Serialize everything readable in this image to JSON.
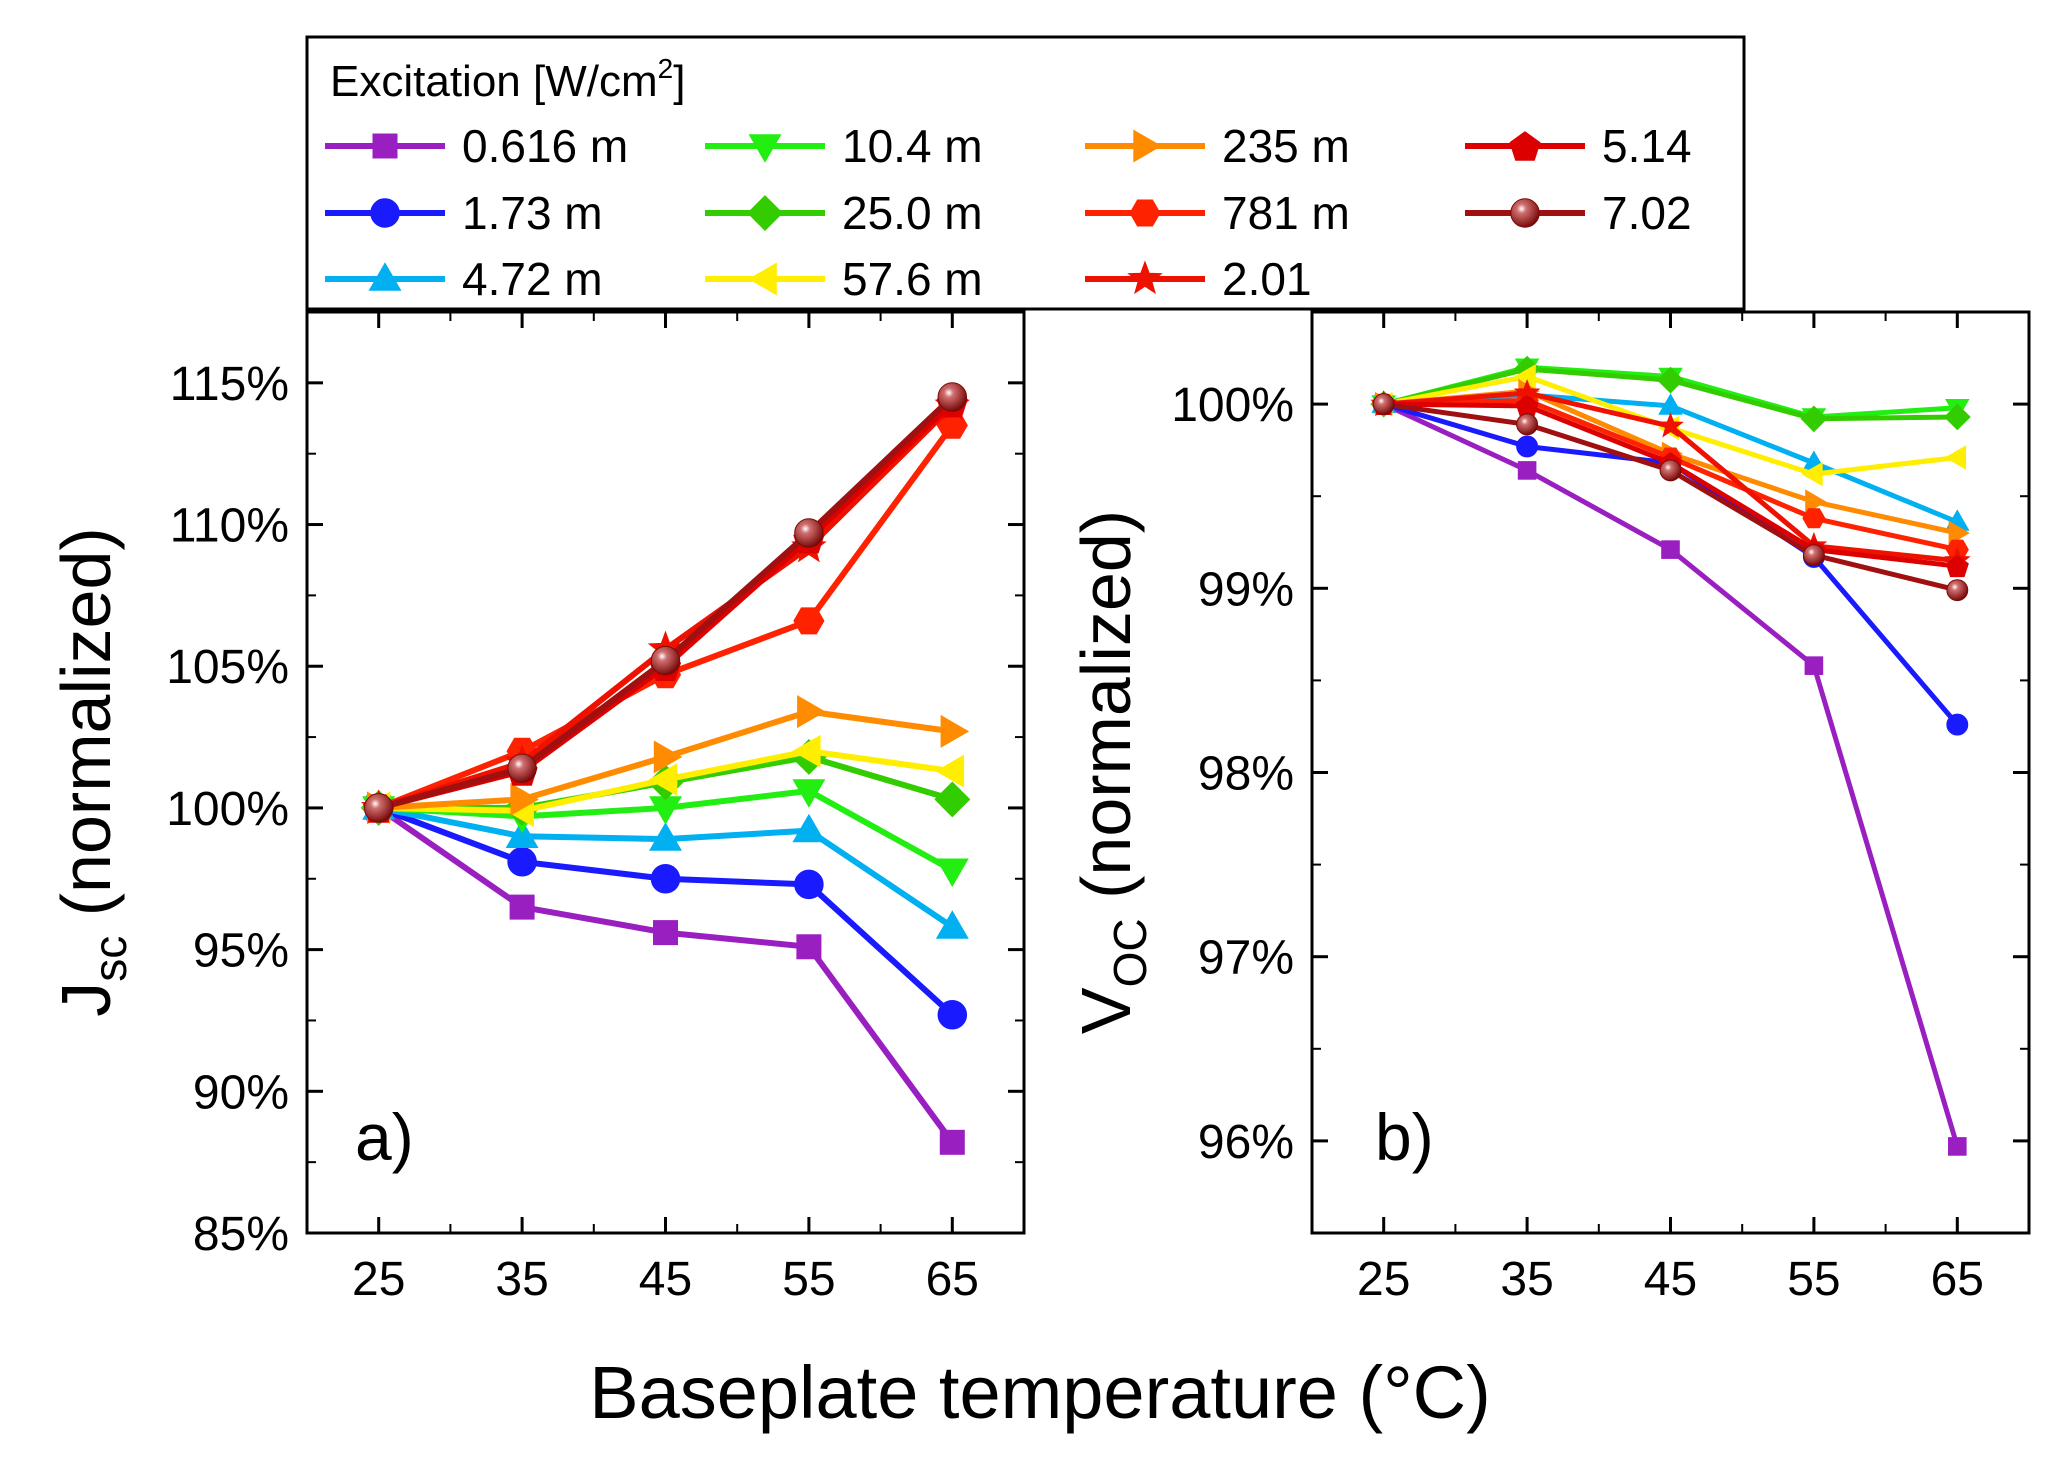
{
  "figure": {
    "shared_xlabel": "Baseplate temperature (°C)"
  },
  "legend": {
    "title": "Excitation [W/cm",
    "title_sup": "2",
    "title_close": "]",
    "placement": "top"
  },
  "series_styles": [
    {
      "name": "0.616 m",
      "color": "#9a1fc0",
      "marker": "square"
    },
    {
      "name": "1.73 m",
      "color": "#1a1aff",
      "marker": "circle"
    },
    {
      "name": "4.72 m",
      "color": "#00b0f0",
      "marker": "triangle-up"
    },
    {
      "name": "10.4 m",
      "color": "#22ee11",
      "marker": "triangle-down"
    },
    {
      "name": "25.0 m",
      "color": "#33cc00",
      "marker": "diamond"
    },
    {
      "name": "57.6 m",
      "color": "#ffee00",
      "marker": "triangle-left"
    },
    {
      "name": "235 m",
      "color": "#ff8c00",
      "marker": "triangle-right"
    },
    {
      "name": "781 m",
      "color": "#ff2200",
      "marker": "hexagon"
    },
    {
      "name": "2.01",
      "color": "#ee1100",
      "marker": "star"
    },
    {
      "name": "5.14",
      "color": "#dd0000",
      "marker": "pentagon"
    },
    {
      "name": "7.02",
      "color": "#a01010",
      "marker": "sphere"
    }
  ],
  "chart_data": [
    {
      "type": "line",
      "panel_label": "a)",
      "ylabel_main": "J",
      "ylabel_sub": "sc",
      "ylabel_rest": " (normalized)",
      "xlabel": "Baseplate temperature (°C)",
      "x": [
        25,
        35,
        45,
        55,
        65
      ],
      "xlim": [
        20,
        70
      ],
      "xticks": [
        25,
        35,
        45,
        55,
        65
      ],
      "ylim": [
        85,
        117.5
      ],
      "yticks": [
        85,
        90,
        95,
        100,
        105,
        110,
        115
      ],
      "ytick_labels": [
        "85%",
        "90%",
        "95%",
        "100%",
        "105%",
        "110%",
        "115%"
      ],
      "series": [
        {
          "name": "0.616 m",
          "values": [
            100,
            96.5,
            95.6,
            95.1,
            88.2
          ]
        },
        {
          "name": "1.73 m",
          "values": [
            100,
            98.1,
            97.5,
            97.3,
            92.7
          ]
        },
        {
          "name": "4.72 m",
          "values": [
            100,
            99.0,
            98.9,
            99.2,
            95.8
          ]
        },
        {
          "name": "10.4 m",
          "values": [
            100,
            99.7,
            100.0,
            100.6,
            97.8
          ]
        },
        {
          "name": "25.0 m",
          "values": [
            100,
            100.0,
            100.9,
            101.8,
            100.3
          ]
        },
        {
          "name": "57.6 m",
          "values": [
            100,
            99.9,
            101.0,
            102.0,
            101.3
          ]
        },
        {
          "name": "235 m",
          "values": [
            100,
            100.3,
            101.8,
            103.4,
            102.7
          ]
        },
        {
          "name": "781 m",
          "values": [
            100,
            102.0,
            104.7,
            106.6,
            113.5
          ]
        },
        {
          "name": "2.01",
          "values": [
            100,
            101.6,
            105.6,
            109.2,
            114.2
          ]
        },
        {
          "name": "5.14",
          "values": [
            100,
            101.3,
            105.0,
            109.5,
            114.3
          ]
        },
        {
          "name": "7.02",
          "values": [
            100,
            101.4,
            105.2,
            109.7,
            114.5
          ]
        }
      ]
    },
    {
      "type": "line",
      "panel_label": "b)",
      "ylabel_main": "V",
      "ylabel_sub": "OC",
      "ylabel_rest": " (normalized)",
      "xlabel": "Baseplate temperature (°C)",
      "x": [
        25,
        35,
        45,
        55,
        65
      ],
      "xlim": [
        20,
        70
      ],
      "xticks": [
        25,
        35,
        45,
        55,
        65
      ],
      "ylim": [
        95.5,
        100.5
      ],
      "yticks": [
        96,
        97,
        98,
        99,
        100
      ],
      "ytick_labels": [
        "96%",
        "97%",
        "98%",
        "99%",
        "100%"
      ],
      "series": [
        {
          "name": "0.616 m",
          "values": [
            100,
            99.64,
            99.21,
            98.58,
            95.97
          ]
        },
        {
          "name": "1.73 m",
          "values": [
            100,
            99.77,
            99.68,
            99.17,
            98.26
          ]
        },
        {
          "name": "4.72 m",
          "values": [
            100,
            100.05,
            99.99,
            99.68,
            99.36
          ]
        },
        {
          "name": "10.4 m",
          "values": [
            100,
            100.2,
            100.15,
            99.93,
            99.98
          ]
        },
        {
          "name": "25.0 m",
          "values": [
            100,
            100.19,
            100.13,
            99.92,
            99.93
          ]
        },
        {
          "name": "57.6 m",
          "values": [
            100,
            100.15,
            99.87,
            99.62,
            99.71
          ]
        },
        {
          "name": "235 m",
          "values": [
            100,
            100.07,
            99.73,
            99.47,
            99.3
          ]
        },
        {
          "name": "781 m",
          "values": [
            100,
            100.02,
            99.71,
            99.38,
            99.21
          ]
        },
        {
          "name": "2.01",
          "values": [
            100,
            100.06,
            99.88,
            99.23,
            99.15
          ]
        },
        {
          "name": "5.14",
          "values": [
            100,
            99.99,
            99.68,
            99.21,
            99.12
          ]
        },
        {
          "name": "7.02",
          "values": [
            100,
            99.89,
            99.64,
            99.18,
            98.99
          ]
        }
      ]
    }
  ]
}
